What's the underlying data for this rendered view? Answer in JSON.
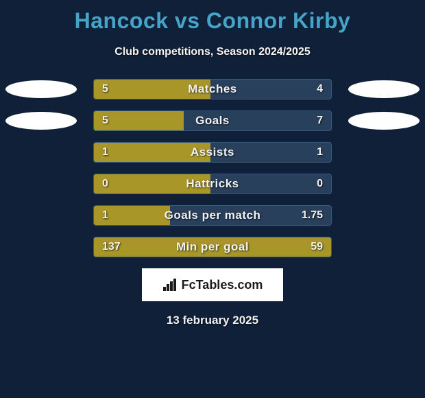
{
  "title": "Hancock vs Connor Kirby",
  "subtitle": "Club competitions, Season 2024/2025",
  "colors": {
    "background": "#102038",
    "title": "#45a4c8",
    "track": "#28405c",
    "track_border": "#355a82",
    "fill": "#a89628",
    "text": "#f2f2f2",
    "avatar": "#ffffff"
  },
  "rows": [
    {
      "label": "Matches",
      "left_value": "5",
      "right_value": "4",
      "left_pct": 49,
      "right_pct": 0,
      "show_avatars": true
    },
    {
      "label": "Goals",
      "left_value": "5",
      "right_value": "7",
      "left_pct": 38,
      "right_pct": 0,
      "show_avatars": true
    },
    {
      "label": "Assists",
      "left_value": "1",
      "right_value": "1",
      "left_pct": 49,
      "right_pct": 0,
      "show_avatars": false
    },
    {
      "label": "Hattricks",
      "left_value": "0",
      "right_value": "0",
      "left_pct": 49,
      "right_pct": 0,
      "show_avatars": false
    },
    {
      "label": "Goals per match",
      "left_value": "1",
      "right_value": "1.75",
      "left_pct": 32,
      "right_pct": 0,
      "show_avatars": false
    },
    {
      "label": "Min per goal",
      "left_value": "137",
      "right_value": "59",
      "left_pct": 100,
      "right_pct": 0,
      "show_avatars": false
    }
  ],
  "logo_text": "FcTables.com",
  "date": "13 february 2025"
}
